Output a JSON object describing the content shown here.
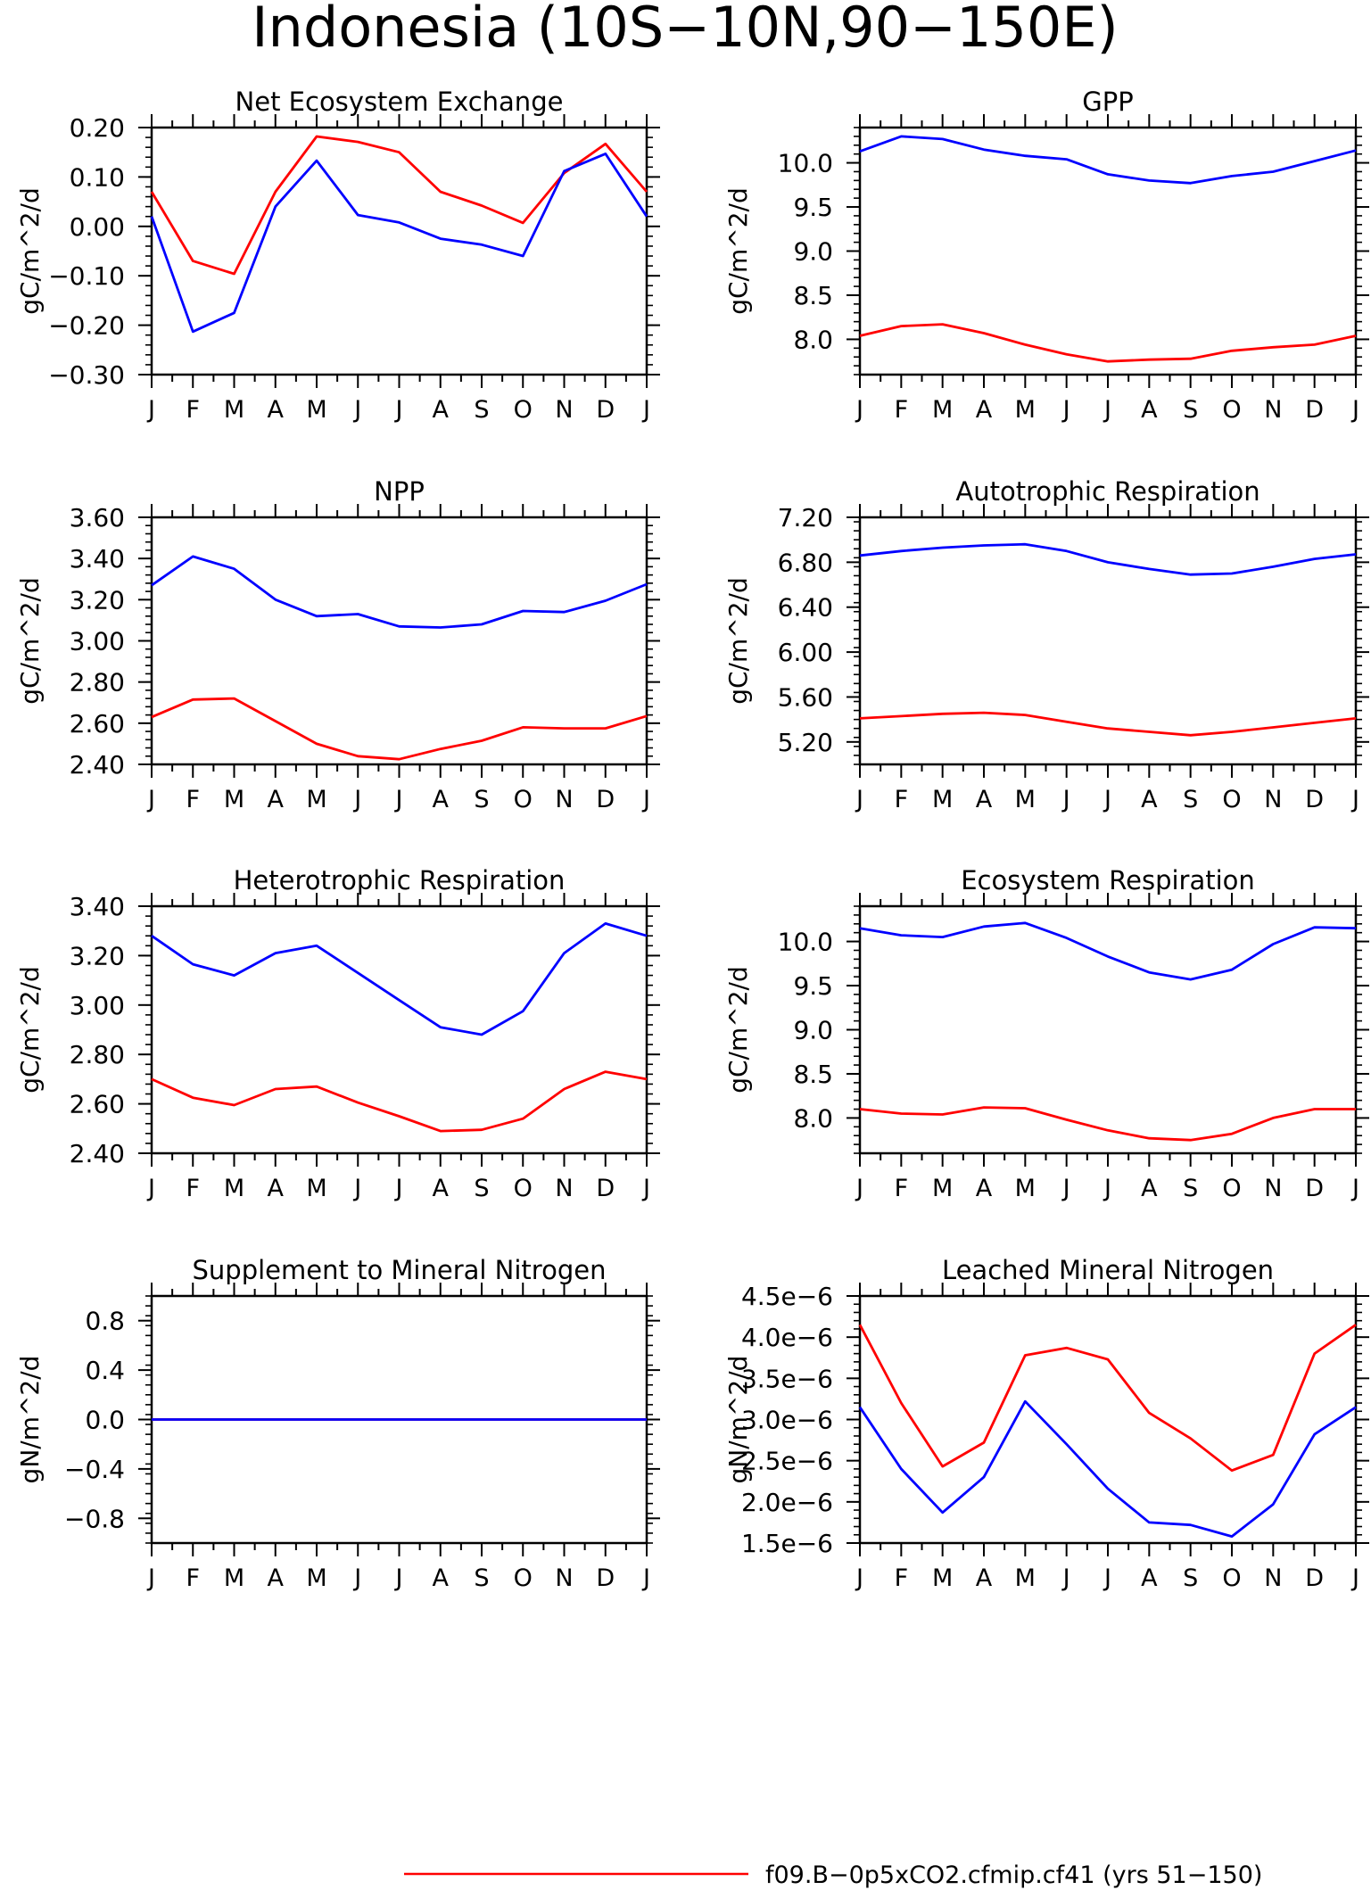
{
  "page": {
    "title": "Indonesia (10S−10N,90−150E)"
  },
  "months": [
    "J",
    "F",
    "M",
    "A",
    "M",
    "J",
    "J",
    "A",
    "S",
    "O",
    "N",
    "D",
    "J"
  ],
  "colors": {
    "red": "#ff0000",
    "blue": "#0000ff"
  },
  "legend": [
    {
      "color": "#ff0000",
      "label": "f09.B−0p5xCO2.cfmip.cf41 (yrs 51−150)"
    }
  ],
  "chart_data": [
    {
      "type": "line",
      "title": "Net Ecosystem Exchange",
      "ylabel": "gC/m^2/d",
      "ylim": [
        -0.3,
        0.2
      ],
      "yticks": [
        -0.3,
        -0.2,
        -0.1,
        0.0,
        0.1,
        0.2
      ],
      "ytick_labels": [
        "−0.30",
        "−0.20",
        "−0.10",
        "0.00",
        "0.10",
        "0.20"
      ],
      "categories": [
        "J",
        "F",
        "M",
        "A",
        "M",
        "J",
        "J",
        "A",
        "S",
        "O",
        "N",
        "D",
        "J"
      ],
      "series": [
        {
          "color": "#ff0000",
          "values": [
            0.07,
            -0.07,
            -0.096,
            0.07,
            0.182,
            0.171,
            0.15,
            0.07,
            0.042,
            0.007,
            0.108,
            0.167,
            0.07
          ]
        },
        {
          "color": "#0000ff",
          "values": [
            0.02,
            -0.213,
            -0.175,
            0.04,
            0.133,
            0.023,
            0.008,
            -0.025,
            -0.037,
            -0.06,
            0.112,
            0.147,
            0.02
          ]
        }
      ]
    },
    {
      "type": "line",
      "title": "GPP",
      "ylabel": "gC/m^2/d",
      "ylim": [
        7.6,
        10.4
      ],
      "yticks": [
        8.0,
        8.5,
        9.0,
        9.5,
        10.0
      ],
      "ytick_labels": [
        "8.0",
        "8.5",
        "9.0",
        "9.5",
        "10.0"
      ],
      "categories": [
        "J",
        "F",
        "M",
        "A",
        "M",
        "J",
        "J",
        "A",
        "S",
        "O",
        "N",
        "D",
        "J"
      ],
      "series": [
        {
          "color": "#0000ff",
          "values": [
            10.13,
            10.3,
            10.27,
            10.15,
            10.08,
            10.04,
            9.87,
            9.8,
            9.77,
            9.85,
            9.9,
            10.02,
            10.14
          ]
        },
        {
          "color": "#ff0000",
          "values": [
            8.04,
            8.15,
            8.17,
            8.07,
            7.94,
            7.83,
            7.75,
            7.77,
            7.78,
            7.87,
            7.91,
            7.94,
            8.04
          ]
        }
      ]
    },
    {
      "type": "line",
      "title": "NPP",
      "ylabel": "gC/m^2/d",
      "ylim": [
        2.4,
        3.6
      ],
      "yticks": [
        2.4,
        2.6,
        2.8,
        3.0,
        3.2,
        3.4,
        3.6
      ],
      "ytick_labels": [
        "2.40",
        "2.60",
        "2.80",
        "3.00",
        "3.20",
        "3.40",
        "3.60"
      ],
      "categories": [
        "J",
        "F",
        "M",
        "A",
        "M",
        "J",
        "J",
        "A",
        "S",
        "O",
        "N",
        "D",
        "J"
      ],
      "series": [
        {
          "color": "#0000ff",
          "values": [
            3.27,
            3.41,
            3.35,
            3.2,
            3.12,
            3.13,
            3.07,
            3.065,
            3.08,
            3.145,
            3.14,
            3.195,
            3.275
          ]
        },
        {
          "color": "#ff0000",
          "values": [
            2.63,
            2.715,
            2.72,
            2.61,
            2.5,
            2.44,
            2.425,
            2.475,
            2.515,
            2.58,
            2.575,
            2.575,
            2.635
          ]
        }
      ]
    },
    {
      "type": "line",
      "title": "Autotrophic Respiration",
      "ylabel": "gC/m^2/d",
      "ylim": [
        5.0,
        7.2
      ],
      "yticks": [
        5.2,
        5.6,
        6.0,
        6.4,
        6.8,
        7.2
      ],
      "ytick_labels": [
        "5.20",
        "5.60",
        "6.00",
        "6.40",
        "6.80",
        "7.20"
      ],
      "categories": [
        "J",
        "F",
        "M",
        "A",
        "M",
        "J",
        "J",
        "A",
        "S",
        "O",
        "N",
        "D",
        "J"
      ],
      "series": [
        {
          "color": "#0000ff",
          "values": [
            6.86,
            6.9,
            6.93,
            6.95,
            6.96,
            6.9,
            6.8,
            6.74,
            6.69,
            6.7,
            6.76,
            6.83,
            6.87
          ]
        },
        {
          "color": "#ff0000",
          "values": [
            5.41,
            5.43,
            5.45,
            5.46,
            5.44,
            5.38,
            5.32,
            5.29,
            5.26,
            5.29,
            5.33,
            5.37,
            5.41
          ]
        }
      ]
    },
    {
      "type": "line",
      "title": "Heterotrophic Respiration",
      "ylabel": "gC/m^2/d",
      "ylim": [
        2.4,
        3.4
      ],
      "yticks": [
        2.4,
        2.6,
        2.8,
        3.0,
        3.2,
        3.4
      ],
      "ytick_labels": [
        "2.40",
        "2.60",
        "2.80",
        "3.00",
        "3.20",
        "3.40"
      ],
      "categories": [
        "J",
        "F",
        "M",
        "A",
        "M",
        "J",
        "J",
        "A",
        "S",
        "O",
        "N",
        "D",
        "J"
      ],
      "series": [
        {
          "color": "#0000ff",
          "values": [
            3.28,
            3.165,
            3.12,
            3.21,
            3.24,
            3.13,
            3.02,
            2.91,
            2.88,
            2.975,
            3.21,
            3.33,
            3.28
          ]
        },
        {
          "color": "#ff0000",
          "values": [
            2.7,
            2.625,
            2.595,
            2.66,
            2.67,
            2.605,
            2.55,
            2.49,
            2.495,
            2.54,
            2.66,
            2.73,
            2.7
          ]
        }
      ]
    },
    {
      "type": "line",
      "title": "Ecosystem Respiration",
      "ylabel": "gC/m^2/d",
      "ylim": [
        7.6,
        10.4
      ],
      "yticks": [
        8.0,
        8.5,
        9.0,
        9.5,
        10.0
      ],
      "ytick_labels": [
        "8.0",
        "8.5",
        "9.0",
        "9.5",
        "10.0"
      ],
      "categories": [
        "J",
        "F",
        "M",
        "A",
        "M",
        "J",
        "J",
        "A",
        "S",
        "O",
        "N",
        "D",
        "J"
      ],
      "series": [
        {
          "color": "#0000ff",
          "values": [
            10.15,
            10.07,
            10.05,
            10.17,
            10.21,
            10.04,
            9.83,
            9.65,
            9.57,
            9.68,
            9.97,
            10.16,
            10.15
          ]
        },
        {
          "color": "#ff0000",
          "values": [
            8.1,
            8.05,
            8.04,
            8.12,
            8.11,
            7.98,
            7.86,
            7.77,
            7.75,
            7.82,
            8.0,
            8.1,
            8.1
          ]
        }
      ]
    },
    {
      "type": "line",
      "title": "Supplement to Mineral Nitrogen",
      "ylabel": "gN/m^2/d",
      "ylim": [
        -1.0,
        1.0
      ],
      "yticks": [
        -0.8,
        -0.4,
        0.0,
        0.4,
        0.8
      ],
      "ytick_labels": [
        "−0.8",
        "−0.4",
        "0.0",
        "0.4",
        "0.8"
      ],
      "categories": [
        "J",
        "F",
        "M",
        "A",
        "M",
        "J",
        "J",
        "A",
        "S",
        "O",
        "N",
        "D",
        "J"
      ],
      "series": [
        {
          "color": "#ff0000",
          "values": [
            0,
            0,
            0,
            0,
            0,
            0,
            0,
            0,
            0,
            0,
            0,
            0,
            0
          ]
        },
        {
          "color": "#0000ff",
          "values": [
            0,
            0,
            0,
            0,
            0,
            0,
            0,
            0,
            0,
            0,
            0,
            0,
            0
          ]
        }
      ]
    },
    {
      "type": "line",
      "title": "Leached Mineral Nitrogen",
      "ylabel": "gN/m^2/d",
      "ylim": [
        1.5e-06,
        4.5e-06
      ],
      "yticks": [
        1.5e-06,
        2e-06,
        2.5e-06,
        3e-06,
        3.5e-06,
        4e-06,
        4.5e-06
      ],
      "ytick_labels": [
        "1.5e−6",
        "2.0e−6",
        "2.5e−6",
        "3.0e−6",
        "3.5e−6",
        "4.0e−6",
        "4.5e−6"
      ],
      "categories": [
        "J",
        "F",
        "M",
        "A",
        "M",
        "J",
        "J",
        "A",
        "S",
        "O",
        "N",
        "D",
        "J"
      ],
      "series": [
        {
          "color": "#ff0000",
          "values": [
            4.15e-06,
            3.2e-06,
            2.43e-06,
            2.72e-06,
            3.78e-06,
            3.87e-06,
            3.73e-06,
            3.08e-06,
            2.77e-06,
            2.38e-06,
            2.57e-06,
            3.8e-06,
            4.15e-06
          ]
        },
        {
          "color": "#0000ff",
          "values": [
            3.15e-06,
            2.4e-06,
            1.87e-06,
            2.3e-06,
            3.22e-06,
            2.7e-06,
            2.16e-06,
            1.75e-06,
            1.72e-06,
            1.58e-06,
            1.97e-06,
            2.82e-06,
            3.15e-06
          ]
        }
      ]
    }
  ]
}
